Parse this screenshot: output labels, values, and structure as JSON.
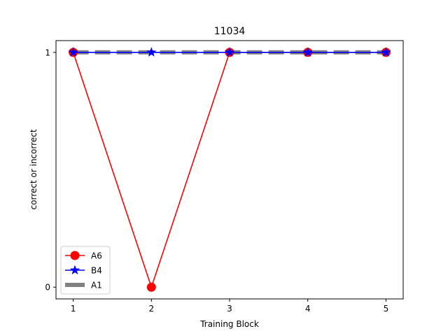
{
  "chart_data": {
    "type": "line",
    "title": "11034",
    "xlabel": "Training Block",
    "ylabel": "correct or incorrect",
    "x": [
      1,
      2,
      3,
      4,
      5
    ],
    "xlim": [
      0.78,
      5.22
    ],
    "ylim": [
      -0.05,
      1.05
    ],
    "xticks": [
      1,
      2,
      3,
      4,
      5
    ],
    "yticks": [
      0,
      1
    ],
    "grid": false,
    "legend_position": "lower-left",
    "series": [
      {
        "name": "A1",
        "values": [
          1,
          1,
          1,
          1,
          1
        ],
        "color": "#808080",
        "style": "dashed",
        "marker": "none"
      },
      {
        "name": "A6",
        "values": [
          1,
          0,
          1,
          1,
          1
        ],
        "color": "#ff0000",
        "style": "solid",
        "marker": "circle"
      },
      {
        "name": "B4",
        "values": [
          1,
          1,
          1,
          1,
          1
        ],
        "color": "#0000ff",
        "style": "solid",
        "marker": "star"
      }
    ],
    "legend_order": [
      "A6",
      "B4",
      "A1"
    ]
  }
}
